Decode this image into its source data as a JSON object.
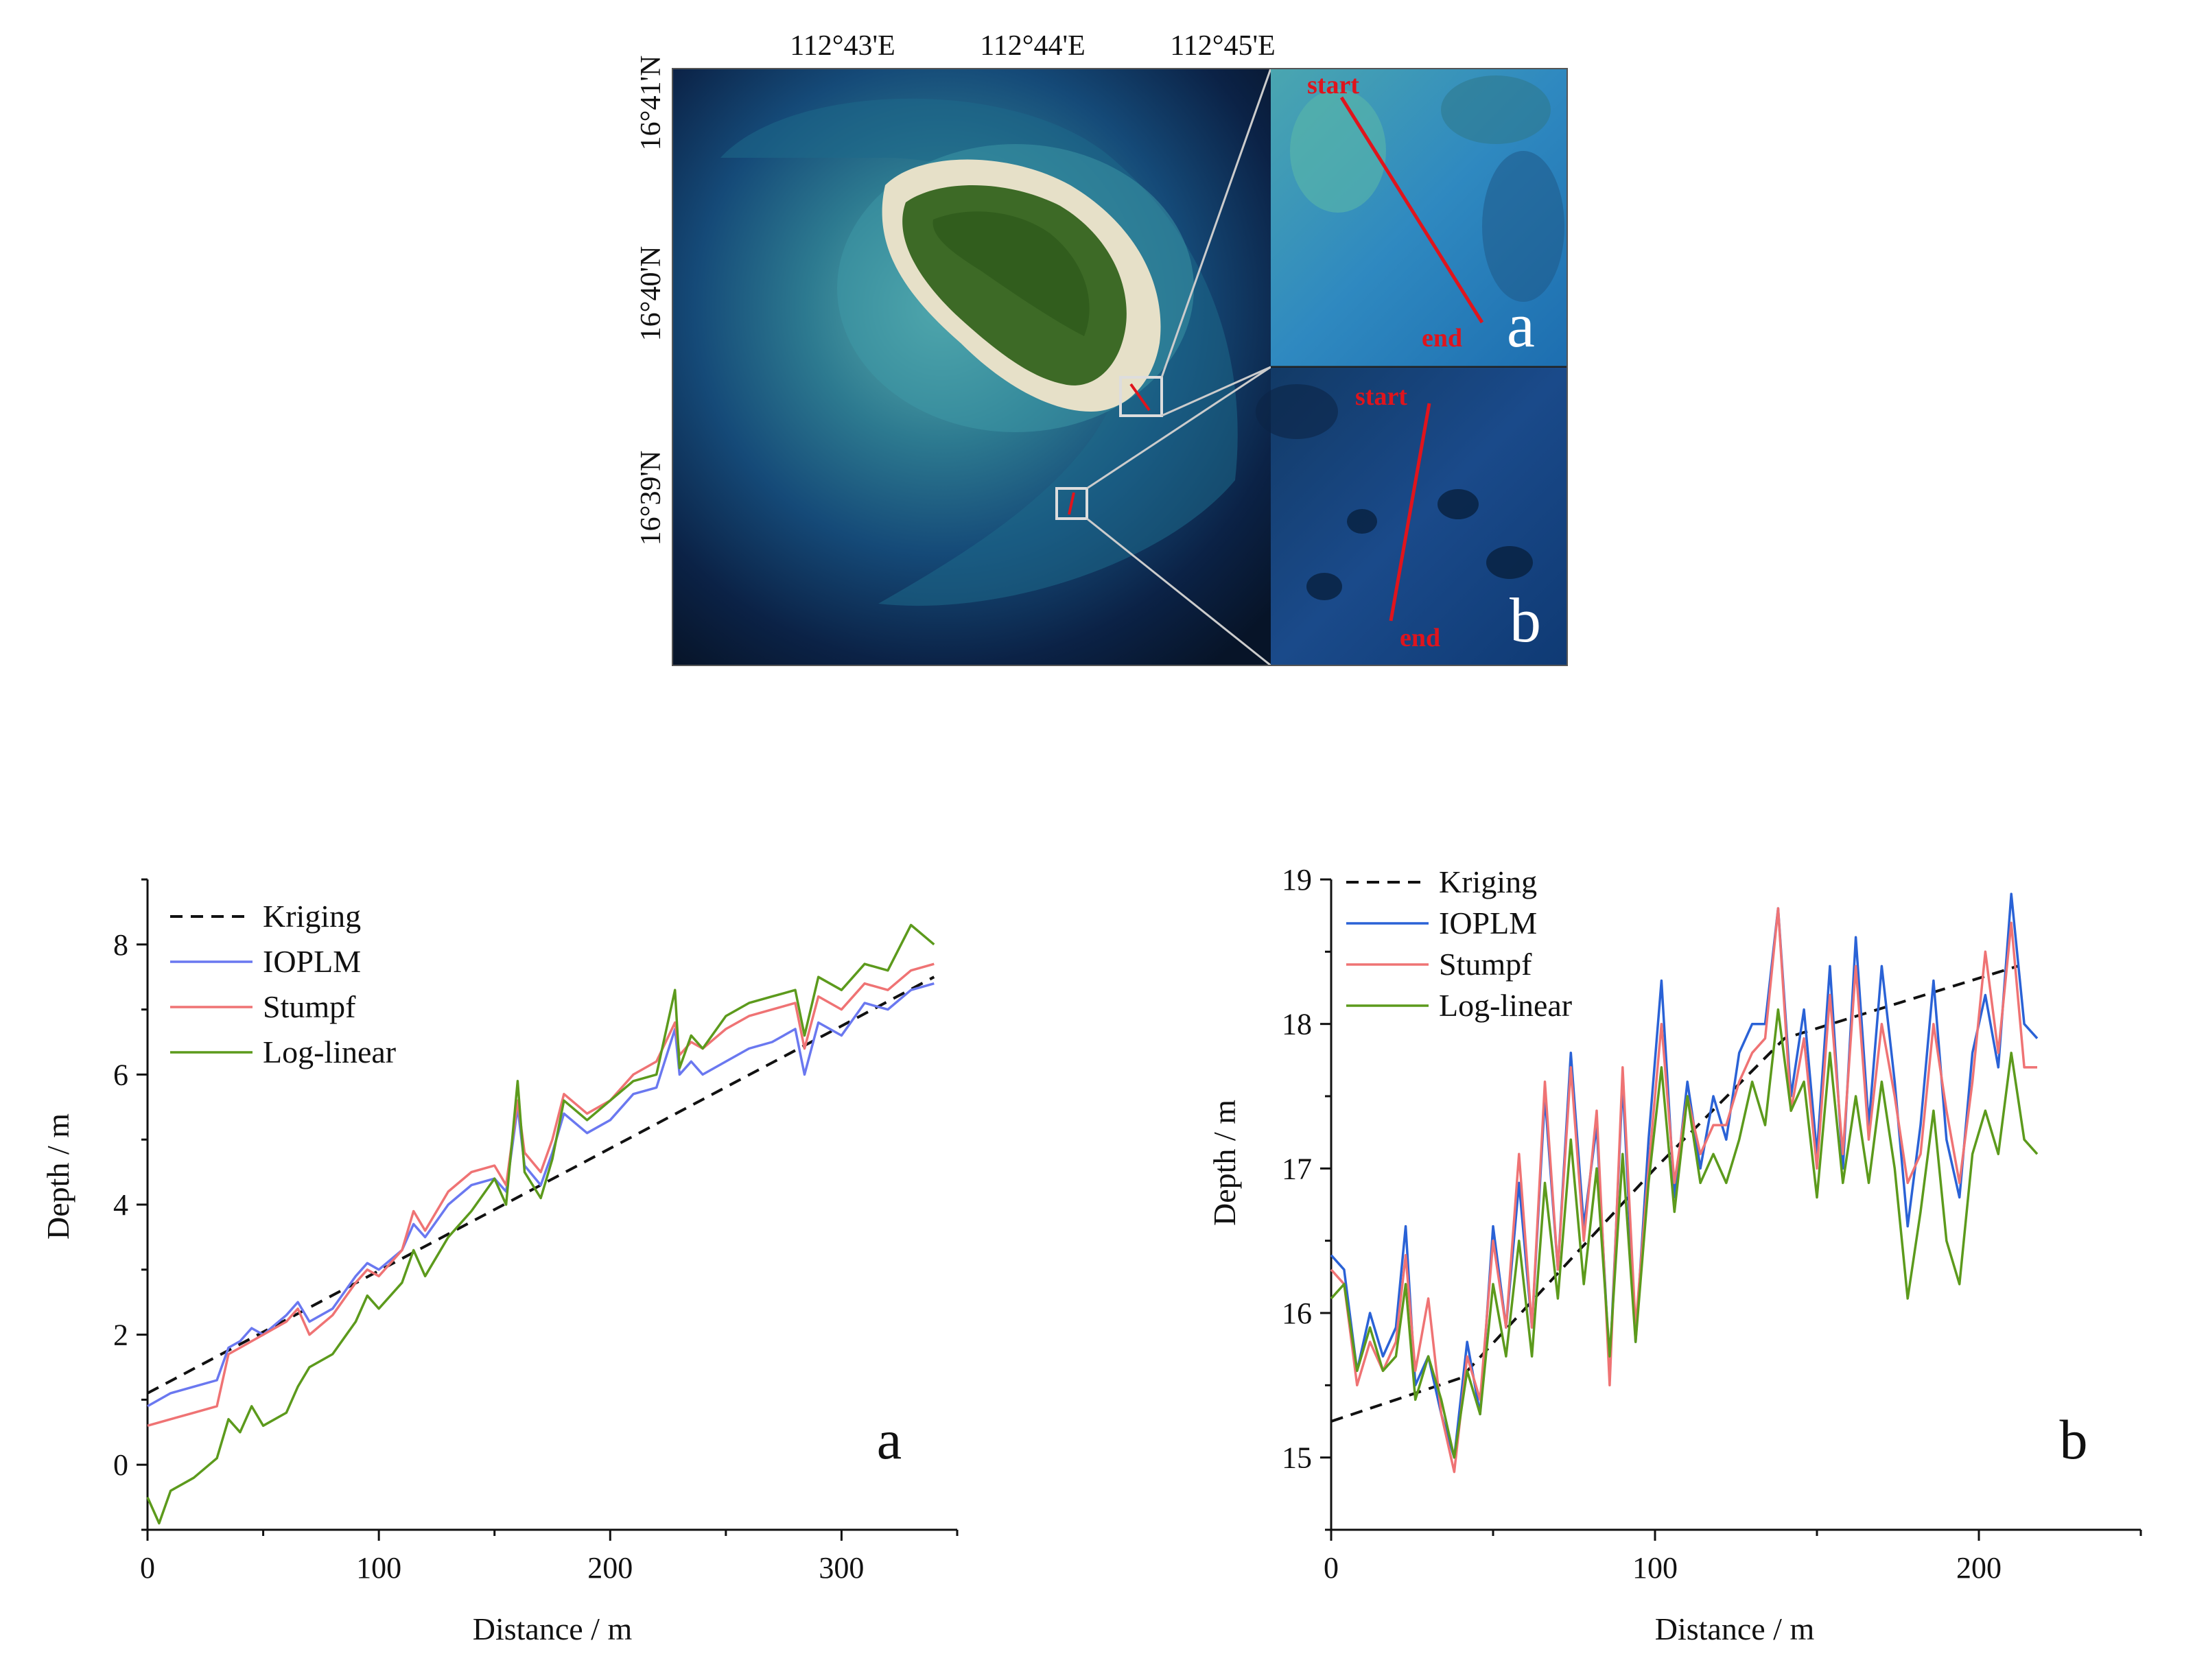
{
  "map": {
    "lon_labels": [
      "112°43'E",
      "112°44'E",
      "112°45'E"
    ],
    "lat_labels": [
      "16°41'N",
      "16°40'N",
      "16°39'N"
    ],
    "insets": [
      {
        "panel": "a",
        "start_label": "start",
        "end_label": "end",
        "letter": "a"
      },
      {
        "panel": "b",
        "start_label": "start",
        "end_label": "end",
        "letter": "b"
      }
    ]
  },
  "colors": {
    "kriging": "#111111",
    "ioplm_a": "#6a78f0",
    "ioplm_b": "#2a62d6",
    "stumpf": "#ef7374",
    "loglinear": "#5c9a1c",
    "transect": "#e0141c"
  },
  "chart_data": [
    {
      "type": "line",
      "panel_label": "a",
      "xlabel": "Distance / m",
      "ylabel": "Depth / m",
      "xlim": [
        0,
        350
      ],
      "ylim": [
        -1,
        9
      ],
      "xticks": [
        0,
        100,
        200,
        300
      ],
      "yticks": [
        0,
        2,
        4,
        6,
        8
      ],
      "legend_position": "top-left",
      "series": [
        {
          "name": "Kriging",
          "style": "dashed",
          "color_key": "kriging",
          "x": [
            0,
            340
          ],
          "y": [
            1.1,
            7.5
          ]
        },
        {
          "name": "IOPLM",
          "style": "solid",
          "color_key": "ioplm_a",
          "x": [
            0,
            10,
            20,
            30,
            35,
            40,
            45,
            50,
            60,
            65,
            70,
            80,
            90,
            95,
            100,
            110,
            115,
            120,
            130,
            140,
            150,
            155,
            160,
            163,
            170,
            175,
            180,
            190,
            200,
            210,
            220,
            228,
            230,
            235,
            240,
            250,
            260,
            270,
            280,
            284,
            290,
            300,
            310,
            320,
            330,
            340
          ],
          "y": [
            0.9,
            1.1,
            1.2,
            1.3,
            1.8,
            1.9,
            2.1,
            2.0,
            2.3,
            2.5,
            2.2,
            2.4,
            2.9,
            3.1,
            3.0,
            3.3,
            3.7,
            3.5,
            4.0,
            4.3,
            4.4,
            4.2,
            5.5,
            4.6,
            4.3,
            4.8,
            5.4,
            5.1,
            5.3,
            5.7,
            5.8,
            6.7,
            6.0,
            6.2,
            6.0,
            6.2,
            6.4,
            6.5,
            6.7,
            6.0,
            6.8,
            6.6,
            7.1,
            7.0,
            7.3,
            7.4
          ]
        },
        {
          "name": "Stumpf",
          "style": "solid",
          "color_key": "stumpf",
          "x": [
            0,
            10,
            20,
            30,
            35,
            40,
            45,
            50,
            60,
            65,
            70,
            80,
            90,
            95,
            100,
            110,
            115,
            120,
            130,
            140,
            150,
            155,
            160,
            163,
            170,
            175,
            180,
            190,
            200,
            210,
            220,
            228,
            230,
            235,
            240,
            250,
            260,
            270,
            280,
            284,
            290,
            300,
            310,
            320,
            330,
            340
          ],
          "y": [
            0.6,
            0.7,
            0.8,
            0.9,
            1.7,
            1.8,
            1.9,
            2.0,
            2.2,
            2.4,
            2.0,
            2.3,
            2.8,
            3.0,
            2.9,
            3.3,
            3.9,
            3.6,
            4.2,
            4.5,
            4.6,
            4.3,
            5.6,
            4.8,
            4.5,
            5.0,
            5.7,
            5.4,
            5.6,
            6.0,
            6.2,
            6.8,
            6.3,
            6.5,
            6.4,
            6.7,
            6.9,
            7.0,
            7.1,
            6.4,
            7.2,
            7.0,
            7.4,
            7.3,
            7.6,
            7.7
          ]
        },
        {
          "name": "Log-linear",
          "style": "solid",
          "color_key": "loglinear",
          "x": [
            0,
            5,
            10,
            20,
            30,
            35,
            40,
            45,
            50,
            60,
            65,
            70,
            80,
            90,
            95,
            100,
            110,
            115,
            120,
            130,
            140,
            150,
            155,
            160,
            163,
            170,
            175,
            180,
            190,
            200,
            210,
            220,
            228,
            230,
            235,
            240,
            250,
            260,
            270,
            280,
            284,
            290,
            300,
            310,
            320,
            330,
            340
          ],
          "y": [
            -0.5,
            -0.9,
            -0.4,
            -0.2,
            0.1,
            0.7,
            0.5,
            0.9,
            0.6,
            0.8,
            1.2,
            1.5,
            1.7,
            2.2,
            2.6,
            2.4,
            2.8,
            3.3,
            2.9,
            3.5,
            3.9,
            4.4,
            4.0,
            5.9,
            4.5,
            4.1,
            4.7,
            5.6,
            5.3,
            5.6,
            5.9,
            6.0,
            7.3,
            6.1,
            6.6,
            6.4,
            6.9,
            7.1,
            7.2,
            7.3,
            6.6,
            7.5,
            7.3,
            7.7,
            7.6,
            8.3,
            8.0
          ]
        }
      ]
    },
    {
      "type": "line",
      "panel_label": "b",
      "xlabel": "Distance / m",
      "ylabel": "Depth / m",
      "xlim": [
        0,
        250
      ],
      "ylim": [
        14.5,
        19
      ],
      "xticks": [
        0,
        100,
        200
      ],
      "yticks": [
        15,
        16,
        17,
        18,
        19
      ],
      "legend_position": "top-left",
      "series": [
        {
          "name": "Kriging",
          "style": "dashed",
          "color_key": "kriging",
          "x": [
            0,
            40,
            100,
            140,
            212
          ],
          "y": [
            15.25,
            15.55,
            17.0,
            17.9,
            18.4
          ]
        },
        {
          "name": "IOPLM",
          "style": "solid",
          "color_key": "ioplm_b",
          "x": [
            0,
            4,
            8,
            12,
            16,
            20,
            23,
            26,
            30,
            34,
            38,
            42,
            46,
            50,
            54,
            58,
            62,
            66,
            70,
            74,
            78,
            82,
            86,
            90,
            94,
            98,
            102,
            106,
            110,
            114,
            118,
            122,
            126,
            130,
            134,
            138,
            142,
            146,
            150,
            154,
            158,
            162,
            166,
            170,
            174,
            178,
            182,
            186,
            190,
            194,
            198,
            202,
            206,
            210,
            214,
            218
          ],
          "y": [
            16.4,
            16.3,
            15.6,
            16.0,
            15.7,
            15.9,
            16.6,
            15.5,
            15.7,
            15.3,
            15.0,
            15.8,
            15.3,
            16.6,
            15.9,
            16.9,
            15.9,
            17.5,
            16.3,
            17.8,
            16.6,
            17.3,
            15.6,
            17.6,
            15.8,
            17.2,
            18.3,
            16.8,
            17.6,
            17.0,
            17.5,
            17.2,
            17.8,
            18.0,
            18.0,
            18.8,
            17.5,
            18.1,
            17.1,
            18.4,
            17.0,
            18.6,
            17.3,
            18.4,
            17.6,
            16.6,
            17.3,
            18.3,
            17.2,
            16.8,
            17.8,
            18.2,
            17.7,
            18.9,
            18.0,
            17.9
          ]
        },
        {
          "name": "Stumpf",
          "style": "solid",
          "color_key": "stumpf",
          "x": [
            0,
            4,
            8,
            12,
            16,
            20,
            23,
            26,
            30,
            34,
            38,
            42,
            46,
            50,
            54,
            58,
            62,
            66,
            70,
            74,
            78,
            82,
            86,
            90,
            94,
            98,
            102,
            106,
            110,
            114,
            118,
            122,
            126,
            130,
            134,
            138,
            142,
            146,
            150,
            154,
            158,
            162,
            166,
            170,
            174,
            178,
            182,
            186,
            190,
            194,
            198,
            202,
            206,
            210,
            214,
            218
          ],
          "y": [
            16.3,
            16.2,
            15.5,
            15.8,
            15.6,
            15.8,
            16.4,
            15.6,
            16.1,
            15.3,
            14.9,
            15.7,
            15.4,
            16.5,
            15.9,
            17.1,
            15.9,
            17.6,
            16.3,
            17.7,
            16.5,
            17.4,
            15.5,
            17.7,
            15.9,
            17.0,
            18.0,
            16.9,
            17.5,
            17.1,
            17.3,
            17.3,
            17.6,
            17.8,
            17.9,
            18.8,
            17.4,
            17.9,
            17.0,
            18.2,
            17.1,
            18.4,
            17.2,
            18.0,
            17.5,
            16.9,
            17.1,
            18.0,
            17.4,
            16.9,
            17.6,
            18.5,
            17.8,
            18.7,
            17.7,
            17.7
          ]
        },
        {
          "name": "Log-linear",
          "style": "solid",
          "color_key": "loglinear",
          "x": [
            0,
            4,
            8,
            12,
            16,
            20,
            23,
            26,
            30,
            34,
            38,
            42,
            46,
            50,
            54,
            58,
            62,
            66,
            70,
            74,
            78,
            82,
            86,
            90,
            94,
            98,
            102,
            106,
            110,
            114,
            118,
            122,
            126,
            130,
            134,
            138,
            142,
            146,
            150,
            154,
            158,
            162,
            166,
            170,
            174,
            178,
            182,
            186,
            190,
            194,
            198,
            202,
            206,
            210,
            214,
            218
          ],
          "y": [
            16.1,
            16.2,
            15.6,
            15.9,
            15.6,
            15.7,
            16.2,
            15.4,
            15.7,
            15.4,
            15.0,
            15.6,
            15.3,
            16.2,
            15.7,
            16.5,
            15.7,
            16.9,
            16.1,
            17.2,
            16.2,
            17.0,
            15.7,
            17.1,
            15.8,
            16.9,
            17.7,
            16.7,
            17.5,
            16.9,
            17.1,
            16.9,
            17.2,
            17.6,
            17.3,
            18.1,
            17.4,
            17.6,
            16.8,
            17.8,
            16.9,
            17.5,
            16.9,
            17.6,
            17.0,
            16.1,
            16.7,
            17.4,
            16.5,
            16.2,
            17.1,
            17.4,
            17.1,
            17.8,
            17.2,
            17.1
          ]
        }
      ]
    }
  ]
}
